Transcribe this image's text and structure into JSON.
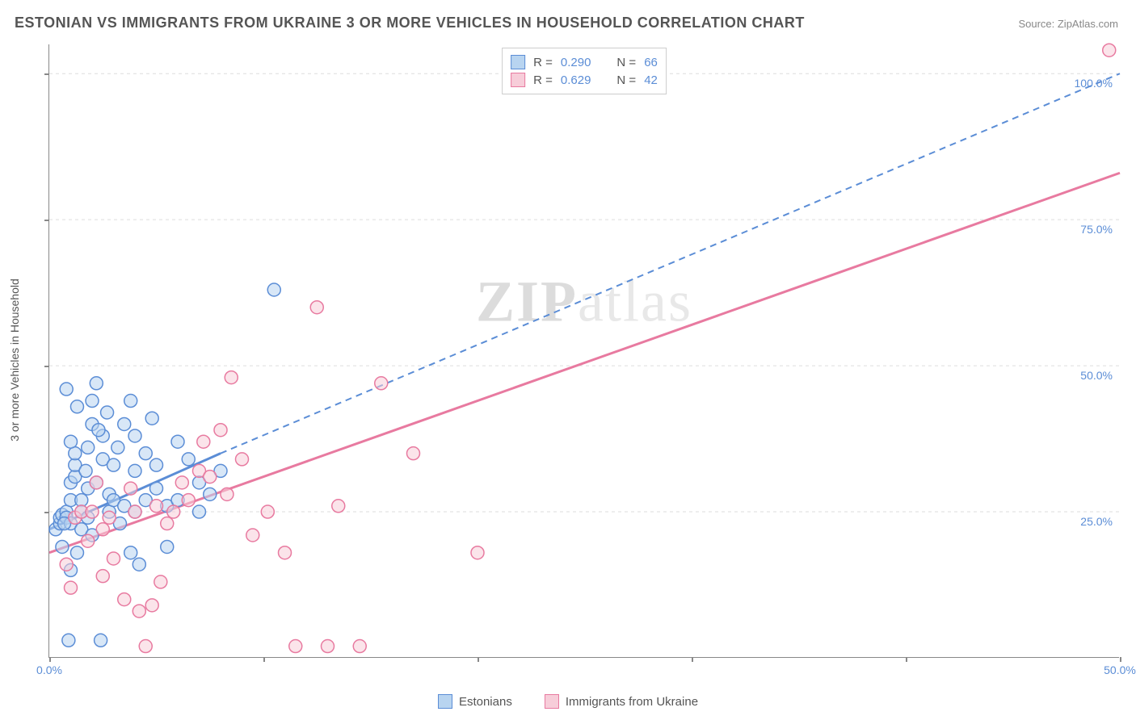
{
  "title": "ESTONIAN VS IMMIGRANTS FROM UKRAINE 3 OR MORE VEHICLES IN HOUSEHOLD CORRELATION CHART",
  "source_label": "Source: ZipAtlas.com",
  "y_axis_label": "3 or more Vehicles in Household",
  "watermark": {
    "prefix": "ZIP",
    "suffix": "atlas"
  },
  "chart": {
    "type": "scatter",
    "xlim": [
      0,
      50
    ],
    "ylim": [
      0,
      105
    ],
    "x_tick_positions": [
      0,
      10,
      20,
      30,
      40,
      50
    ],
    "y_tick_positions": [
      25,
      50,
      75,
      100
    ],
    "x_tick_labels": {
      "0": "0.0%",
      "50": "50.0%"
    },
    "y_tick_labels": {
      "25": "25.0%",
      "50": "50.0%",
      "75": "75.0%",
      "100": "100.0%"
    },
    "background_color": "#ffffff",
    "grid_color": "#dddddd",
    "axis_color": "#888888",
    "tick_label_color": "#5b8dd6",
    "marker_radius": 8,
    "marker_stroke_width": 1.5,
    "series": [
      {
        "name": "Estonians",
        "fill_color": "#b8d4f0",
        "stroke_color": "#5b8dd6",
        "fill_opacity": 0.55,
        "r": 0.29,
        "n": 66,
        "regression_solid": {
          "x1": 0,
          "y1": 22,
          "x2": 8,
          "y2": 35
        },
        "regression_dashed_start": {
          "x": 8,
          "y": 35
        },
        "regression_dashed_end": {
          "x": 50,
          "y": 100
        },
        "points": [
          [
            0.3,
            22
          ],
          [
            0.5,
            23
          ],
          [
            0.5,
            24
          ],
          [
            0.6,
            24.5
          ],
          [
            0.8,
            25
          ],
          [
            0.8,
            24
          ],
          [
            1.0,
            23
          ],
          [
            1.0,
            27
          ],
          [
            1.0,
            30
          ],
          [
            1.2,
            31
          ],
          [
            1.2,
            33
          ],
          [
            1.2,
            35
          ],
          [
            1.5,
            27
          ],
          [
            1.5,
            25
          ],
          [
            1.5,
            22
          ],
          [
            1.8,
            24
          ],
          [
            1.8,
            29
          ],
          [
            1.8,
            36
          ],
          [
            2.0,
            40
          ],
          [
            2.0,
            44
          ],
          [
            2.2,
            47
          ],
          [
            2.2,
            30
          ],
          [
            2.5,
            34
          ],
          [
            2.5,
            38
          ],
          [
            2.7,
            42
          ],
          [
            2.8,
            25
          ],
          [
            2.8,
            28
          ],
          [
            3.0,
            33
          ],
          [
            3.0,
            27
          ],
          [
            3.2,
            36
          ],
          [
            3.5,
            40
          ],
          [
            3.5,
            26
          ],
          [
            3.8,
            44
          ],
          [
            3.8,
            18
          ],
          [
            4.0,
            32
          ],
          [
            4.0,
            38
          ],
          [
            4.0,
            25
          ],
          [
            4.2,
            16
          ],
          [
            4.5,
            35
          ],
          [
            4.5,
            27
          ],
          [
            4.8,
            41
          ],
          [
            5.0,
            29
          ],
          [
            5.0,
            33
          ],
          [
            5.5,
            26
          ],
          [
            5.5,
            19
          ],
          [
            6.0,
            37
          ],
          [
            6.0,
            27
          ],
          [
            6.5,
            34
          ],
          [
            7.0,
            30
          ],
          [
            7.0,
            25
          ],
          [
            7.5,
            28
          ],
          [
            8.0,
            32
          ],
          [
            10.5,
            63
          ],
          [
            1.0,
            15
          ],
          [
            2.0,
            21
          ],
          [
            1.3,
            18
          ],
          [
            0.8,
            46
          ],
          [
            2.3,
            39
          ],
          [
            1.3,
            43
          ],
          [
            1.0,
            37
          ],
          [
            3.3,
            23
          ],
          [
            0.9,
            3
          ],
          [
            2.4,
            3
          ],
          [
            0.6,
            19
          ],
          [
            0.7,
            23
          ],
          [
            1.7,
            32
          ]
        ]
      },
      {
        "name": "Immigrants from Ukraine",
        "fill_color": "#f7cdd9",
        "stroke_color": "#e87aa0",
        "fill_opacity": 0.55,
        "r": 0.629,
        "n": 42,
        "regression_solid": {
          "x1": 0,
          "y1": 18,
          "x2": 50,
          "y2": 83
        },
        "regression_dashed_start": null,
        "regression_dashed_end": null,
        "points": [
          [
            0.8,
            16
          ],
          [
            1.2,
            24
          ],
          [
            1.5,
            25
          ],
          [
            2.0,
            25
          ],
          [
            2.2,
            30
          ],
          [
            2.5,
            22
          ],
          [
            2.8,
            24
          ],
          [
            3.0,
            17
          ],
          [
            3.5,
            10
          ],
          [
            3.8,
            29
          ],
          [
            4.0,
            25
          ],
          [
            4.2,
            8
          ],
          [
            4.8,
            9
          ],
          [
            5.0,
            26
          ],
          [
            5.5,
            23
          ],
          [
            5.8,
            25
          ],
          [
            6.2,
            30
          ],
          [
            6.5,
            27
          ],
          [
            7.0,
            32
          ],
          [
            7.2,
            37
          ],
          [
            7.5,
            31
          ],
          [
            8.0,
            39
          ],
          [
            8.3,
            28
          ],
          [
            8.5,
            48
          ],
          [
            9.0,
            34
          ],
          [
            10.2,
            25
          ],
          [
            11.0,
            18
          ],
          [
            11.5,
            2
          ],
          [
            12.5,
            60
          ],
          [
            13.0,
            2
          ],
          [
            13.5,
            26
          ],
          [
            14.5,
            2
          ],
          [
            15.5,
            47
          ],
          [
            17.0,
            35
          ],
          [
            20.0,
            18
          ],
          [
            49.5,
            104
          ],
          [
            4.5,
            2
          ],
          [
            1.0,
            12
          ],
          [
            2.5,
            14
          ],
          [
            1.8,
            20
          ],
          [
            5.2,
            13
          ],
          [
            9.5,
            21
          ]
        ]
      }
    ]
  },
  "legend_bottom": [
    {
      "label": "Estonians",
      "fill": "#b8d4f0",
      "stroke": "#5b8dd6"
    },
    {
      "label": "Immigrants from Ukraine",
      "fill": "#f7cdd9",
      "stroke": "#e87aa0"
    }
  ],
  "stats_legend_colors": {
    "label": "#555555",
    "value": "#5b8dd6"
  }
}
